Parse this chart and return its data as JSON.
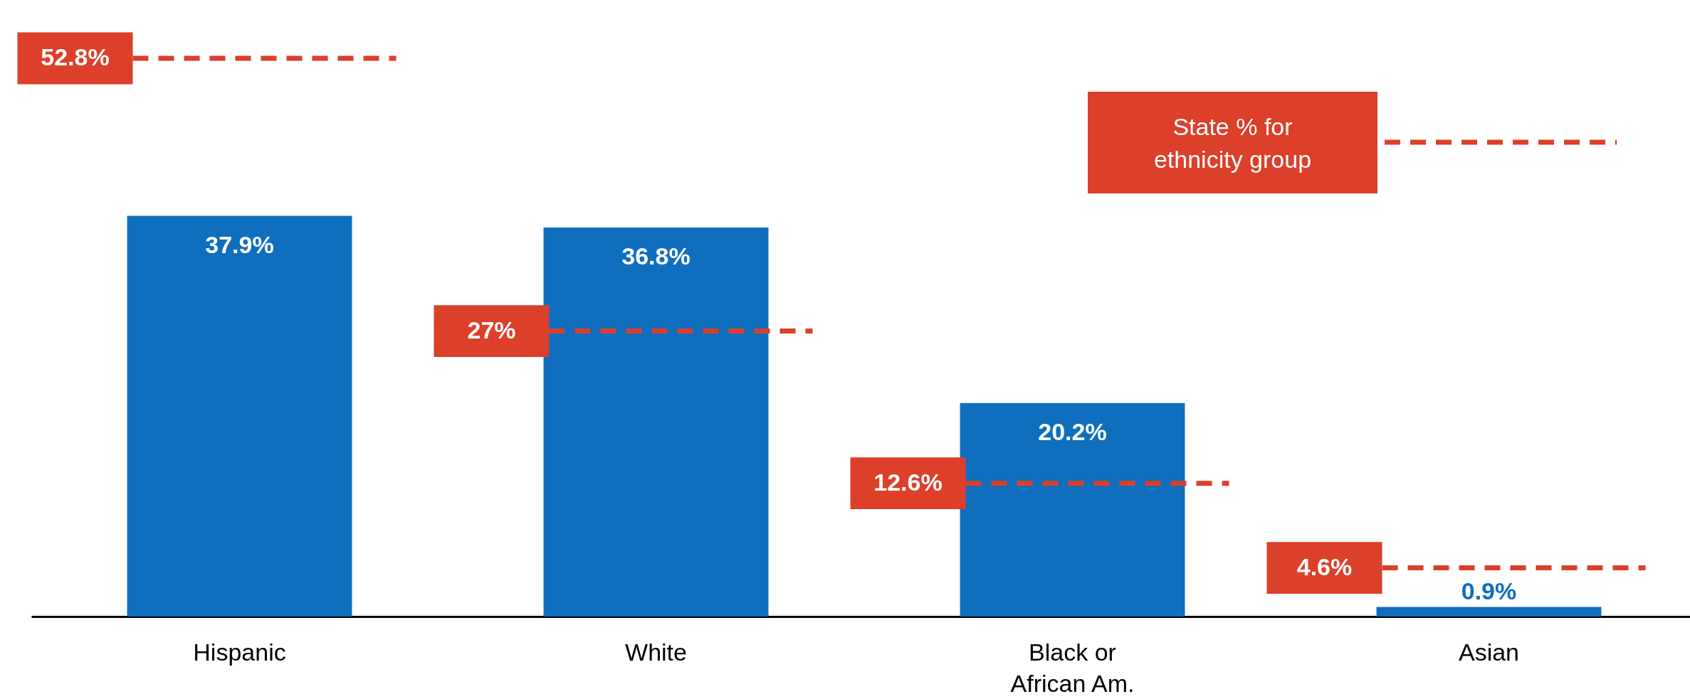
{
  "chart_data": {
    "type": "bar",
    "categories": [
      "Hispanic",
      "White",
      "Black or African Am.",
      "Asian"
    ],
    "series": [
      {
        "color": "#106ebe",
        "values": [
          37.9,
          36.8,
          20.2,
          0.9
        ],
        "value_labels": [
          "37.9%",
          "36.8%",
          "20.2%",
          "0.9%"
        ]
      }
    ],
    "ref_lines": [
      {
        "axis": "y",
        "value": 52.8,
        "label": "52.8%",
        "color": "#dc3f2a",
        "line_style": "dashed"
      },
      {
        "axis": "y",
        "value": 27,
        "label": "27%",
        "color": "#dc3f2a",
        "line_style": "dashed"
      },
      {
        "axis": "y",
        "value": 12.6,
        "label": "12.6%",
        "color": "#dc3f2a",
        "line_style": "dashed"
      },
      {
        "axis": "y",
        "value": 4.6,
        "label": "4.6%",
        "color": "#dc3f2a",
        "line_style": "dashed"
      }
    ],
    "annotations": [
      "State % for ethnicity group"
    ],
    "grid": false
  }
}
